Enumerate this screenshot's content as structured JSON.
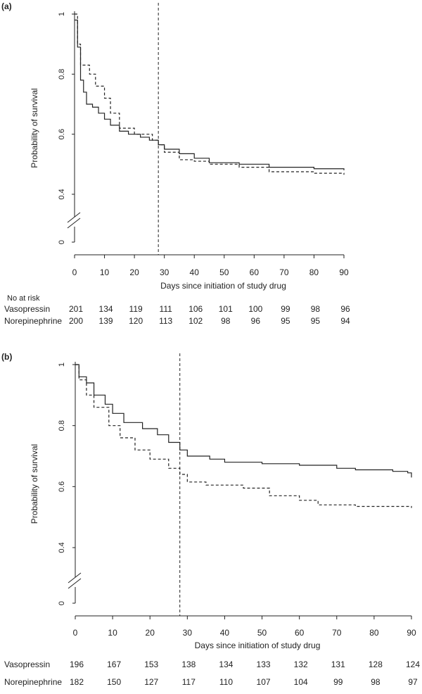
{
  "chart_data": [
    {
      "type": "line",
      "step": true,
      "panel_label": "(a)",
      "ylabel": "Probability of survival",
      "xlabel": "Days since initiation of study drug",
      "xlim": [
        0,
        90
      ],
      "xticks": [
        0,
        10,
        20,
        30,
        40,
        50,
        60,
        70,
        80,
        90
      ],
      "ylim": [
        0.4,
        1
      ],
      "yticks": [
        0,
        0.4,
        0.6,
        0.8,
        1
      ],
      "axis_break": true,
      "vline": 28,
      "series": [
        {
          "line_style": "solid",
          "color": "#222222",
          "x": [
            0,
            1,
            2,
            3,
            4,
            6,
            8,
            10,
            12,
            15,
            18,
            22,
            25,
            28,
            30,
            35,
            40,
            45,
            55,
            65,
            80,
            90
          ],
          "values": [
            0.98,
            0.89,
            0.78,
            0.74,
            0.7,
            0.69,
            0.67,
            0.65,
            0.63,
            0.61,
            0.6,
            0.59,
            0.58,
            0.565,
            0.55,
            0.535,
            0.52,
            0.505,
            0.5,
            0.49,
            0.485,
            0.48
          ]
        },
        {
          "line_style": "dashed",
          "color": "#222222",
          "x": [
            0,
            1,
            2,
            5,
            7,
            10,
            12,
            15,
            20,
            26,
            28,
            30,
            35,
            40,
            45,
            55,
            65,
            80,
            90
          ],
          "values": [
            1,
            0.9,
            0.83,
            0.8,
            0.76,
            0.72,
            0.67,
            0.62,
            0.6,
            0.58,
            0.565,
            0.54,
            0.515,
            0.51,
            0.5,
            0.49,
            0.475,
            0.47,
            0.465
          ]
        }
      ],
      "risk_table": {
        "title": "No at risk",
        "rows": [
          {
            "name": "Vasopressin",
            "values": [
              201,
              134,
              119,
              111,
              106,
              101,
              100,
              99,
              98,
              96
            ]
          },
          {
            "name": "Norepinephrine",
            "values": [
              200,
              139,
              120,
              113,
              102,
              98,
              96,
              95,
              95,
              94
            ]
          }
        ]
      }
    },
    {
      "type": "line",
      "step": true,
      "panel_label": "(b)",
      "ylabel": "Probability of survival",
      "xlabel": "Days since initiation of study drug",
      "xlim": [
        0,
        90
      ],
      "xticks": [
        0,
        10,
        20,
        30,
        40,
        50,
        60,
        70,
        80,
        90
      ],
      "ylim": [
        0.4,
        1
      ],
      "yticks": [
        0,
        0.4,
        0.6,
        0.8,
        1
      ],
      "axis_break": true,
      "vline": 28,
      "series": [
        {
          "line_style": "solid",
          "color": "#222222",
          "x": [
            0,
            1,
            3,
            5,
            8,
            10,
            13,
            18,
            22,
            25,
            28,
            30,
            36,
            40,
            50,
            60,
            70,
            75,
            85,
            89,
            90
          ],
          "values": [
            1,
            0.96,
            0.94,
            0.9,
            0.87,
            0.84,
            0.81,
            0.79,
            0.77,
            0.745,
            0.72,
            0.7,
            0.69,
            0.68,
            0.675,
            0.67,
            0.66,
            0.655,
            0.65,
            0.645,
            0.63
          ]
        },
        {
          "line_style": "dashed",
          "color": "#222222",
          "x": [
            0,
            1,
            3,
            5,
            9,
            12,
            16,
            20,
            25,
            28,
            30,
            35,
            45,
            52,
            60,
            65,
            75,
            90
          ],
          "values": [
            1,
            0.95,
            0.9,
            0.86,
            0.8,
            0.76,
            0.72,
            0.69,
            0.66,
            0.64,
            0.615,
            0.605,
            0.595,
            0.57,
            0.555,
            0.54,
            0.535,
            0.53
          ]
        }
      ],
      "risk_table": {
        "rows": [
          {
            "name": "Vasopressin",
            "values": [
              196,
              167,
              153,
              138,
              134,
              133,
              132,
              131,
              128,
              124
            ]
          },
          {
            "name": "Norepinephrine",
            "values": [
              182,
              150,
              127,
              117,
              110,
              107,
              104,
              99,
              98,
              97
            ]
          }
        ]
      }
    }
  ]
}
